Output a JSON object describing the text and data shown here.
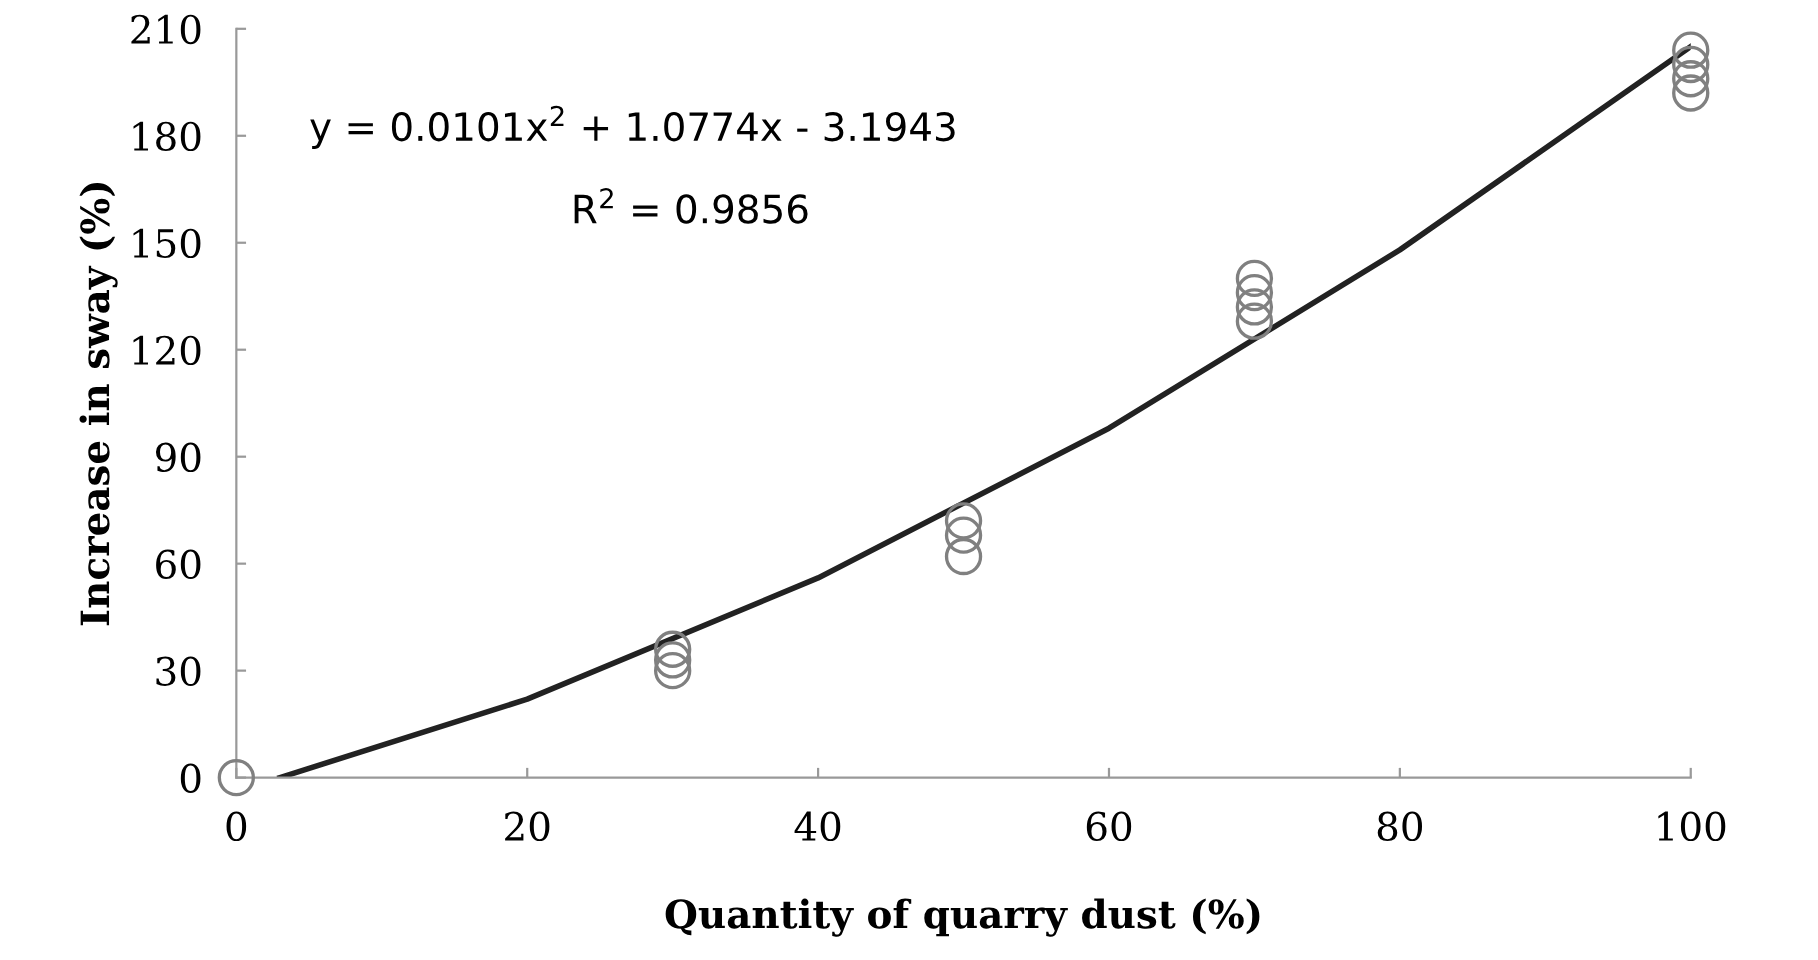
{
  "chart_data": {
    "type": "scatter",
    "xlabel": "Quantity of quarry dust (%)",
    "ylabel": "Increase in sway (%)",
    "xlim": [
      0,
      100
    ],
    "ylim": [
      0,
      210
    ],
    "xticks": [
      0,
      20,
      40,
      60,
      80,
      100
    ],
    "yticks": [
      0,
      30,
      60,
      90,
      120,
      150,
      180,
      210
    ],
    "grid": false,
    "legend": false,
    "marker": "circle",
    "series": [
      {
        "color": "#808080",
        "x": [
          0,
          30,
          30,
          30,
          50,
          50,
          50,
          70,
          70,
          70,
          70,
          100,
          100,
          100,
          100
        ],
        "values": [
          0,
          36,
          33,
          30,
          72,
          68,
          62,
          140,
          136,
          132,
          128,
          204,
          200,
          196,
          192
        ]
      },
      {
        "type": "line",
        "color": "#222222",
        "marker": "none",
        "line_style": "solid",
        "x": [
          3,
          20,
          40,
          60,
          80,
          100
        ],
        "values": [
          0,
          22,
          56,
          98,
          148,
          205
        ]
      }
    ],
    "annotations": [
      "y = 0.0101x$^{2}$ + 1.0774x - 3.1943",
      "R$^{2}$ = 0.9856"
    ]
  }
}
